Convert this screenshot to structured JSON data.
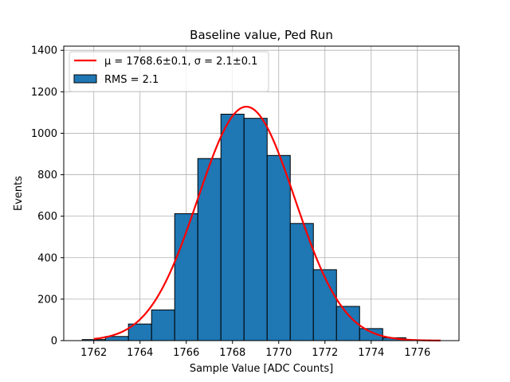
{
  "chart_data": {
    "type": "bar",
    "title": "Baseline value, Ped Run",
    "xlabel": "Sample Value [ADC Counts]",
    "ylabel": "Events",
    "xlim": [
      1760.7,
      1777.8
    ],
    "ylim": [
      0,
      1420
    ],
    "xticks": [
      1762,
      1764,
      1766,
      1768,
      1770,
      1772,
      1774,
      1776
    ],
    "yticks": [
      0,
      200,
      400,
      600,
      800,
      1000,
      1200,
      1400
    ],
    "grid": true,
    "legend_position": "top-left",
    "histogram": {
      "name": "RMS = 2.1",
      "color": "#1f77b4",
      "edge_color": "#000000",
      "bin_edges": [
        1761.5,
        1762.5,
        1763.5,
        1764.5,
        1765.5,
        1766.5,
        1767.5,
        1768.5,
        1769.5,
        1770.5,
        1771.5,
        1772.5,
        1773.5,
        1774.5,
        1775.5
      ],
      "counts": [
        5,
        20,
        80,
        148,
        612,
        878,
        1092,
        1072,
        893,
        565,
        342,
        165,
        58,
        14
      ]
    },
    "fit": {
      "name": "μ = 1768.6±0.1, σ = 2.1±0.1",
      "color": "#ff0000",
      "mu": 1768.6,
      "sigma": 2.1,
      "amplitude": 1128,
      "x_range": [
        1762,
        1777
      ]
    }
  }
}
